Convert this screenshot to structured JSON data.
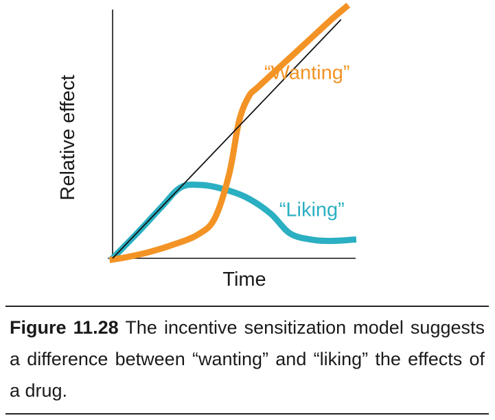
{
  "chart_data": {
    "type": "line",
    "title": "",
    "xlabel": "Time",
    "ylabel": "Relative effect",
    "x_ticks": [],
    "y_ticks": [],
    "xlim": [
      0,
      10
    ],
    "ylim": [
      0,
      10
    ],
    "grid": false,
    "legend": "none",
    "series": [
      {
        "name": "“Wanting”",
        "color": "#F39325",
        "x": [
          0,
          0.6,
          1.5,
          2.5,
          3.5,
          4.2,
          4.8,
          5.2,
          5.6,
          6.0,
          7.0,
          8.0,
          9.0,
          9.6
        ],
        "y": [
          -0.05,
          0.05,
          0.25,
          0.55,
          0.95,
          1.6,
          3.4,
          5.5,
          6.5,
          6.9,
          7.8,
          8.7,
          9.6,
          10.1
        ]
      },
      {
        "name": "“Liking”",
        "color": "#2BAFC2",
        "x": [
          0,
          1.0,
          2.0,
          2.8,
          3.6,
          4.5,
          5.5,
          6.5,
          7.3,
          8.2,
          9.0,
          9.9
        ],
        "y": [
          0,
          1.0,
          2.05,
          2.85,
          2.95,
          2.8,
          2.45,
          1.8,
          1.0,
          0.75,
          0.7,
          0.75
        ]
      },
      {
        "name": "",
        "color": "#111111",
        "x": [
          0,
          9.4
        ],
        "y": [
          0,
          9.6
        ]
      }
    ],
    "annotations": [
      {
        "series": 0,
        "text": "“Wanting”",
        "x": 8.0,
        "y": 7.2,
        "color": "#F39325"
      },
      {
        "series": 1,
        "text": "“Liking”",
        "x": 8.2,
        "y": 1.7,
        "color": "#2BAFC2"
      }
    ]
  },
  "caption": {
    "label": "Figure 11.28",
    "text": "The incentive sensitization model suggests a difference between “wanting” and “liking” the effects of a drug."
  }
}
